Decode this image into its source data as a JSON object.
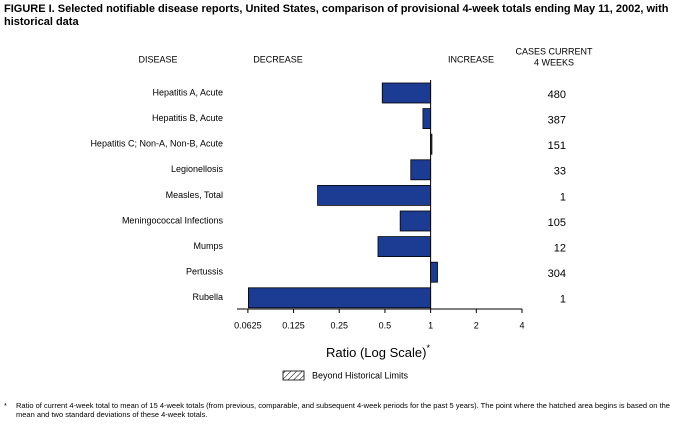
{
  "chart_data": {
    "type": "hbar_log",
    "title": "FIGURE I. Selected notifiable disease reports, United States, comparison of provisional 4-week totals ending May 11, 2002, with historical data",
    "header_disease": "DISEASE",
    "header_decrease": "DECREASE",
    "header_increase": "INCREASE",
    "header_cases": [
      "CASES CURRENT",
      "4 WEEKS"
    ],
    "categories": [
      "Hepatitis A, Acute",
      "Hepatitis B, Acute",
      "Hepatitis C; Non-A, Non-B, Acute",
      "Legionellosis",
      "Measles, Total",
      "Meningococcal Infections",
      "Mumps",
      "Pertussis",
      "Rubella"
    ],
    "values": [
      0.48,
      0.89,
      1.02,
      0.74,
      0.18,
      0.63,
      0.45,
      1.11,
      0.063
    ],
    "cases": [
      480,
      387,
      151,
      33,
      1,
      105,
      12,
      304,
      1
    ],
    "color": "#1c3c94",
    "log_scale": true,
    "xlim": [
      0.053,
      4
    ],
    "xticks": [
      0.0625,
      0.125,
      0.25,
      0.5,
      1,
      2,
      4
    ],
    "x_label": "Ratio (Log Scale)",
    "x_label_note": "*",
    "legend": "Beyond Historical Limits",
    "footnote": {
      "marker": "*",
      "text": "Ratio of current 4-week total to mean of 15 4-week totals (from previous, comparable, and subsequent 4-week periods for the past 5 years). The point where the hatched area begins is based on the mean and two standard deviations of these 4-week totals."
    }
  }
}
